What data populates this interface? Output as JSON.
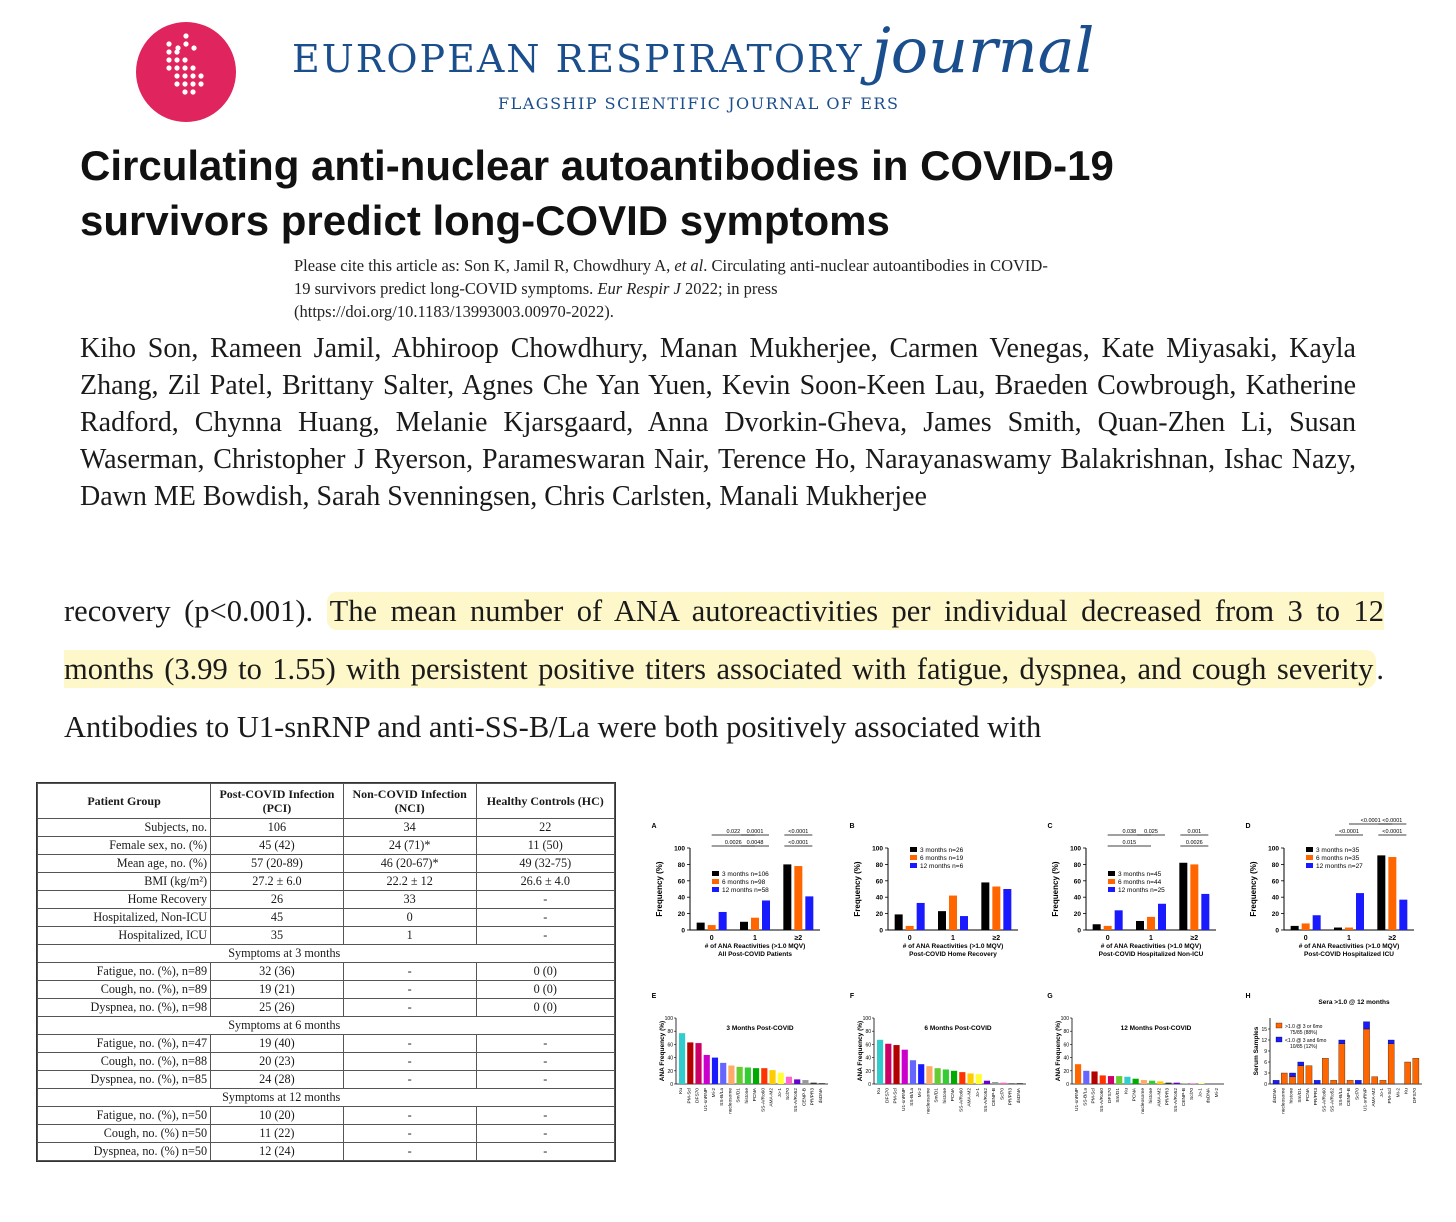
{
  "header": {
    "journal_caps": "EUROPEAN RESPIRATORY",
    "journal_italic": "journal",
    "tagline": "FLAGSHIP SCIENTIFIC JOURNAL OF ERS",
    "brand_color": "#1b4e8c",
    "logo_color": "#e0245e",
    "logo_icon": "ers-lungs-logo"
  },
  "paper": {
    "title": "Circulating anti-nuclear autoantibodies in COVID-19 survivors predict long-COVID symptoms",
    "citation_lead": "Please cite this article as: Son K, Jamil R, Chowdhury A, ",
    "citation_etal": "et al",
    "citation_mid": ". Circulating anti-nuclear autoantibodies in COVID-19 survivors predict long-COVID symptoms. ",
    "citation_journal": "Eur Respir J",
    "citation_tail": " 2022; in press (https://doi.org/10.1183/13993003.00970-2022).",
    "authors": "Kiho Son, Rameen Jamil, Abhiroop Chowdhury, Manan Mukherjee, Carmen Venegas, Kate Miyasaki, Kayla Zhang, Zil Patel, Brittany Salter, Agnes Che Yan Yuen, Kevin Soon-Keen Lau, Braeden Cowbrough, Katherine Radford, Chynna Huang, Melanie Kjarsgaard, Anna Dvorkin-Gheva, James Smith, Quan-Zhen Li, Susan Waserman, Christopher J Ryerson, Parameswaran Nair, Terence Ho, Narayanaswamy Balakrishnan, Ishac Nazy, Dawn ME Bowdish, Sarah Svenningsen, Chris Carlsten, Manali Mukherjee"
  },
  "abstract": {
    "pre": "recovery (p<0.001). ",
    "highlight": "The mean number of ANA autoreactivities per individual decreased from 3 to 12 months (3.99 to 1.55) with persistent positive titers associated with fatigue, dyspnea, and cough severity",
    "post": ". Antibodies to U1-snRNP and anti-SS-B/La were both positively associated with",
    "highlight_color": "#fdf7c9"
  },
  "table": {
    "headers": [
      "Patient Group",
      "Post-COVID Infection (PCI)",
      "Non-COVID Infection (NCI)",
      "Healthy Controls (HC)"
    ],
    "rows": [
      {
        "type": "row",
        "cells": [
          "Subjects, no.",
          "106",
          "34",
          "22"
        ]
      },
      {
        "type": "row",
        "cells": [
          "Female sex, no. (%)",
          "45 (42)",
          "24 (71)*",
          "11 (50)"
        ]
      },
      {
        "type": "row",
        "cells": [
          "Mean age, no. (%)",
          "57 (20-89)",
          "46 (20-67)*",
          "49 (32-75)"
        ]
      },
      {
        "type": "row",
        "cells": [
          "BMI (kg/m²)",
          "27.2 ± 6.0",
          "22.2 ± 12",
          "26.6 ± 4.0"
        ]
      },
      {
        "type": "row",
        "cells": [
          "Home Recovery",
          "26",
          "33",
          "-"
        ]
      },
      {
        "type": "row",
        "cells": [
          "Hospitalized, Non-ICU",
          "45",
          "0",
          "-"
        ]
      },
      {
        "type": "row",
        "cells": [
          "Hospitalized, ICU",
          "35",
          "1",
          "-"
        ]
      },
      {
        "type": "section",
        "label": "Symptoms at 3 months"
      },
      {
        "type": "row",
        "cells": [
          "Fatigue, no. (%), n=89",
          "32 (36)",
          "-",
          "0 (0)"
        ]
      },
      {
        "type": "row",
        "cells": [
          "Cough, no. (%), n=89",
          "19 (21)",
          "-",
          "0 (0)"
        ]
      },
      {
        "type": "row",
        "cells": [
          "Dyspnea, no. (%), n=98",
          "25 (26)",
          "-",
          "0 (0)"
        ]
      },
      {
        "type": "section",
        "label": "Symptoms at 6 months"
      },
      {
        "type": "row",
        "cells": [
          "Fatigue, no. (%), n=47",
          "19 (40)",
          "-",
          "-"
        ]
      },
      {
        "type": "row",
        "cells": [
          "Cough, no. (%), n=88",
          "20 (23)",
          "-",
          "-"
        ]
      },
      {
        "type": "row",
        "cells": [
          "Dyspnea, no. (%), n=85",
          "24 (28)",
          "-",
          "-"
        ]
      },
      {
        "type": "section",
        "label": "Symptoms at 12 months"
      },
      {
        "type": "row",
        "cells": [
          "Fatigue, no. (%), n=50",
          "10 (20)",
          "-",
          "-"
        ]
      },
      {
        "type": "row",
        "cells": [
          "Cough, no. (%) n=50",
          "11 (22)",
          "-",
          "-"
        ]
      },
      {
        "type": "row",
        "cells": [
          "Dyspnea, no. (%) n=50",
          "12 (24)",
          "-",
          "-"
        ]
      }
    ]
  },
  "chart_data": [
    {
      "panel": "A",
      "type": "bar",
      "ylabel": "Frequency (%)",
      "ylim": [
        0,
        100
      ],
      "yticks": [
        0,
        20,
        40,
        60,
        80,
        100
      ],
      "xlabel": "# of ANA Reactivities (>1.0 MQV)",
      "subtitle": "All Post-COVID Patients",
      "categories": [
        "0",
        "1",
        "≥2"
      ],
      "series": [
        {
          "name": "3 months n=106",
          "color": "#000000",
          "values": [
            9,
            10,
            80
          ]
        },
        {
          "name": "6 months n=98",
          "color": "#ff6600",
          "values": [
            6,
            15,
            78
          ]
        },
        {
          "name": "12 months n=58",
          "color": "#1a1aff",
          "values": [
            22,
            36,
            41
          ]
        }
      ],
      "pvalues": [
        {
          "label": "0.022",
          "span": [
            0,
            1
          ],
          "level": 1
        },
        {
          "label": "0.0026",
          "span": [
            0,
            1
          ],
          "level": 0
        },
        {
          "label": "0.0001",
          "span": [
            1,
            1
          ],
          "level": 1
        },
        {
          "label": "0.0048",
          "span": [
            1,
            1
          ],
          "level": 0
        },
        {
          "label": "<0.0001",
          "span": [
            2,
            2
          ],
          "level": 1
        },
        {
          "label": "<0.0001",
          "span": [
            2,
            2
          ],
          "level": 0
        }
      ]
    },
    {
      "panel": "B",
      "type": "bar",
      "ylabel": "Frequency (%)",
      "ylim": [
        0,
        100
      ],
      "yticks": [
        0,
        20,
        40,
        60,
        80,
        100
      ],
      "xlabel": "# of ANA Reactivities (>1.0 MQV)",
      "subtitle": "Post-COVID Home Recovery",
      "categories": [
        "0",
        "1",
        "≥2"
      ],
      "series": [
        {
          "name": "3 months n=26",
          "color": "#000000",
          "values": [
            19,
            23,
            58
          ]
        },
        {
          "name": "6 months n=19",
          "color": "#ff6600",
          "values": [
            5,
            42,
            53
          ]
        },
        {
          "name": "12 months n=6",
          "color": "#1a1aff",
          "values": [
            33,
            17,
            50
          ]
        }
      ],
      "pvalues": []
    },
    {
      "panel": "C",
      "type": "bar",
      "ylabel": "Frequency (%)",
      "ylim": [
        0,
        100
      ],
      "yticks": [
        0,
        20,
        40,
        60,
        80,
        100
      ],
      "xlabel": "# of ANA Reactivities (>1.0 MQV)",
      "subtitle": "Post-COVID Hospitalized Non-ICU",
      "categories": [
        "0",
        "1",
        "≥2"
      ],
      "series": [
        {
          "name": "3 months n=45",
          "color": "#000000",
          "values": [
            7,
            11,
            82
          ]
        },
        {
          "name": "6 months n=44",
          "color": "#ff6600",
          "values": [
            5,
            16,
            80
          ]
        },
        {
          "name": "12 months n=25",
          "color": "#1a1aff",
          "values": [
            24,
            32,
            44
          ]
        }
      ],
      "pvalues": [
        {
          "label": "0.038",
          "span": [
            0,
            1
          ],
          "level": 1
        },
        {
          "label": "0.015",
          "span": [
            0,
            1
          ],
          "level": 0
        },
        {
          "label": "0.025",
          "span": [
            1,
            1
          ],
          "level": 1
        },
        {
          "label": "0.001",
          "span": [
            2,
            2
          ],
          "level": 1
        },
        {
          "label": "0.0026",
          "span": [
            2,
            2
          ],
          "level": 0
        }
      ]
    },
    {
      "panel": "D",
      "type": "bar",
      "ylabel": "Frequency (%)",
      "ylim": [
        0,
        100
      ],
      "yticks": [
        0,
        20,
        40,
        60,
        80,
        100
      ],
      "xlabel": "# of ANA Reactivities (>1.0 MQV)",
      "subtitle": "Post-COVID Hospitalized ICU",
      "categories": [
        "0",
        "1",
        "≥2"
      ],
      "series": [
        {
          "name": "3 months n=35",
          "color": "#000000",
          "values": [
            5,
            3,
            91
          ]
        },
        {
          "name": "6 months n=35",
          "color": "#ff6600",
          "values": [
            8,
            3,
            89
          ]
        },
        {
          "name": "12 months n=27",
          "color": "#1a1aff",
          "values": [
            18,
            45,
            37
          ]
        }
      ],
      "pvalues": [
        {
          "label": "<0.0001",
          "span": [
            1,
            2
          ],
          "level": 2
        },
        {
          "label": "<0.0001",
          "span": [
            1,
            1
          ],
          "level": 1
        },
        {
          "label": "<0.0001",
          "span": [
            2,
            2
          ],
          "level": 2
        },
        {
          "label": "<0.0001",
          "span": [
            2,
            2
          ],
          "level": 1
        }
      ]
    },
    {
      "panel": "E",
      "type": "bar",
      "title": "3 Months Post-COVID",
      "ylabel": "ANA Frequency (%)",
      "ylim": [
        0,
        100
      ],
      "yticks": [
        0,
        20,
        40,
        60,
        80,
        100
      ],
      "categories": [
        "Ku",
        "PM-Scl",
        "DFS70",
        "U1-snRNP",
        "Mi-2",
        "SS-B/La",
        "nucleosome",
        "Sm/D1",
        "histone",
        "PCNA",
        "SS-A/Ro60",
        "AMA-M2",
        "Jo-1",
        "Scl70",
        "SS-A/Ro52",
        "CENP-B",
        "PR/PR3",
        "dsDNA"
      ],
      "values": [
        77,
        63,
        62,
        44,
        40,
        32,
        28,
        26,
        25,
        24,
        24,
        21,
        17,
        11,
        7,
        6,
        2,
        1
      ],
      "colors": [
        "#33cccc",
        "#b30000",
        "#cc0066",
        "#cc00cc",
        "#1a1aff",
        "#6666ff",
        "#ffaa66",
        "#66cc33",
        "#33cc33",
        "#00aa00",
        "#ff3300",
        "#ffcc00",
        "#ffff33",
        "#ff66cc",
        "#6600cc",
        "#999999",
        "#333333",
        "#000000"
      ]
    },
    {
      "panel": "F",
      "type": "bar",
      "title": "6 Months Post-COVID",
      "ylabel": "ANA Frequency (%)",
      "ylim": [
        0,
        100
      ],
      "yticks": [
        0,
        20,
        40,
        60,
        80,
        100
      ],
      "categories": [
        "Ku",
        "DFS70",
        "PM-Scl",
        "U1-snRNP",
        "SS-B/La",
        "Mi-2",
        "nucleosome",
        "Sm/D1",
        "histone",
        "PCNA",
        "SS-A/Ro60",
        "AMA-M2",
        "Jo-1",
        "SS-A/Ro52",
        "CENP-B",
        "Scl70",
        "PR/PR3",
        "dsDNA"
      ],
      "values": [
        67,
        61,
        59,
        52,
        36,
        30,
        27,
        24,
        22,
        20,
        18,
        16,
        15,
        5,
        3,
        2,
        1,
        1
      ],
      "colors": [
        "#33cccc",
        "#cc0066",
        "#b30000",
        "#cc00cc",
        "#6666ff",
        "#1a1aff",
        "#ffaa66",
        "#66cc33",
        "#33cc33",
        "#00aa00",
        "#ff3300",
        "#ffcc00",
        "#ffff33",
        "#6600cc",
        "#999999",
        "#ff66cc",
        "#333333",
        "#000000"
      ]
    },
    {
      "panel": "G",
      "type": "bar",
      "title": "12 Months Post-COVID",
      "ylabel": "ANA Frequency (%)",
      "ylim": [
        0,
        100
      ],
      "yticks": [
        0,
        20,
        40,
        60,
        80,
        100
      ],
      "categories": [
        "U1-snRNP",
        "SS-B/La",
        "PM-Scl",
        "SS-A/Ro60",
        "DFS70",
        "Sm/D1",
        "Ku",
        "PCNA",
        "nucleosome",
        "histone",
        "AMA-M2",
        "PR/PR3",
        "SS-A/Ro52",
        "CENP-B",
        "Scl70",
        "Jo-1",
        "dsDNA",
        "Mi-2"
      ],
      "values": [
        30,
        20,
        19,
        13,
        12,
        12,
        11,
        8,
        6,
        5,
        4,
        2,
        2,
        1,
        1,
        1,
        0,
        0
      ],
      "colors": [
        "#ff6600",
        "#6666ff",
        "#b30000",
        "#ff3300",
        "#cc0066",
        "#66cc33",
        "#33cccc",
        "#00aa00",
        "#ffaa66",
        "#33cc33",
        "#ffcc00",
        "#333333",
        "#6600cc",
        "#999999",
        "#ff66cc",
        "#ffff33",
        "#000000",
        "#1a1aff"
      ]
    },
    {
      "panel": "H",
      "type": "bar",
      "title": "Sera >1.0 @ 12 months",
      "ylabel": "Serum Samples",
      "ylim": [
        0,
        18
      ],
      "yticks": [
        0,
        3,
        6,
        9,
        12,
        15
      ],
      "categories": [
        "dsDNA",
        "nucleosome",
        "histone",
        "Sm/D1",
        "PCNA",
        "PR/PR3",
        "SS-A/Ro60",
        "SS-A/Ro52",
        "SS-B/La",
        "CENP-B",
        "Scl70",
        "U1-snRNP",
        "AMA-M2",
        "Jo-1",
        "PM-Scl",
        "Mi-2",
        "Ku",
        "DFS70"
      ],
      "series": [
        {
          "name": ">1.0 @ 3 or 6mo 75/85 (88%)",
          "color": "#ff6600",
          "values": [
            0,
            3,
            2,
            5,
            5,
            0,
            7,
            1,
            11,
            1,
            0,
            15,
            2,
            1,
            11,
            0,
            6,
            7
          ]
        },
        {
          "name": "<1.0 @ 3 and 6mo 10/85 (12%)",
          "color": "#1a1aff",
          "values": [
            1,
            0,
            1,
            1,
            0,
            1,
            0,
            0,
            1,
            0,
            1,
            2,
            0,
            0,
            1,
            0,
            0,
            0
          ]
        }
      ]
    }
  ]
}
